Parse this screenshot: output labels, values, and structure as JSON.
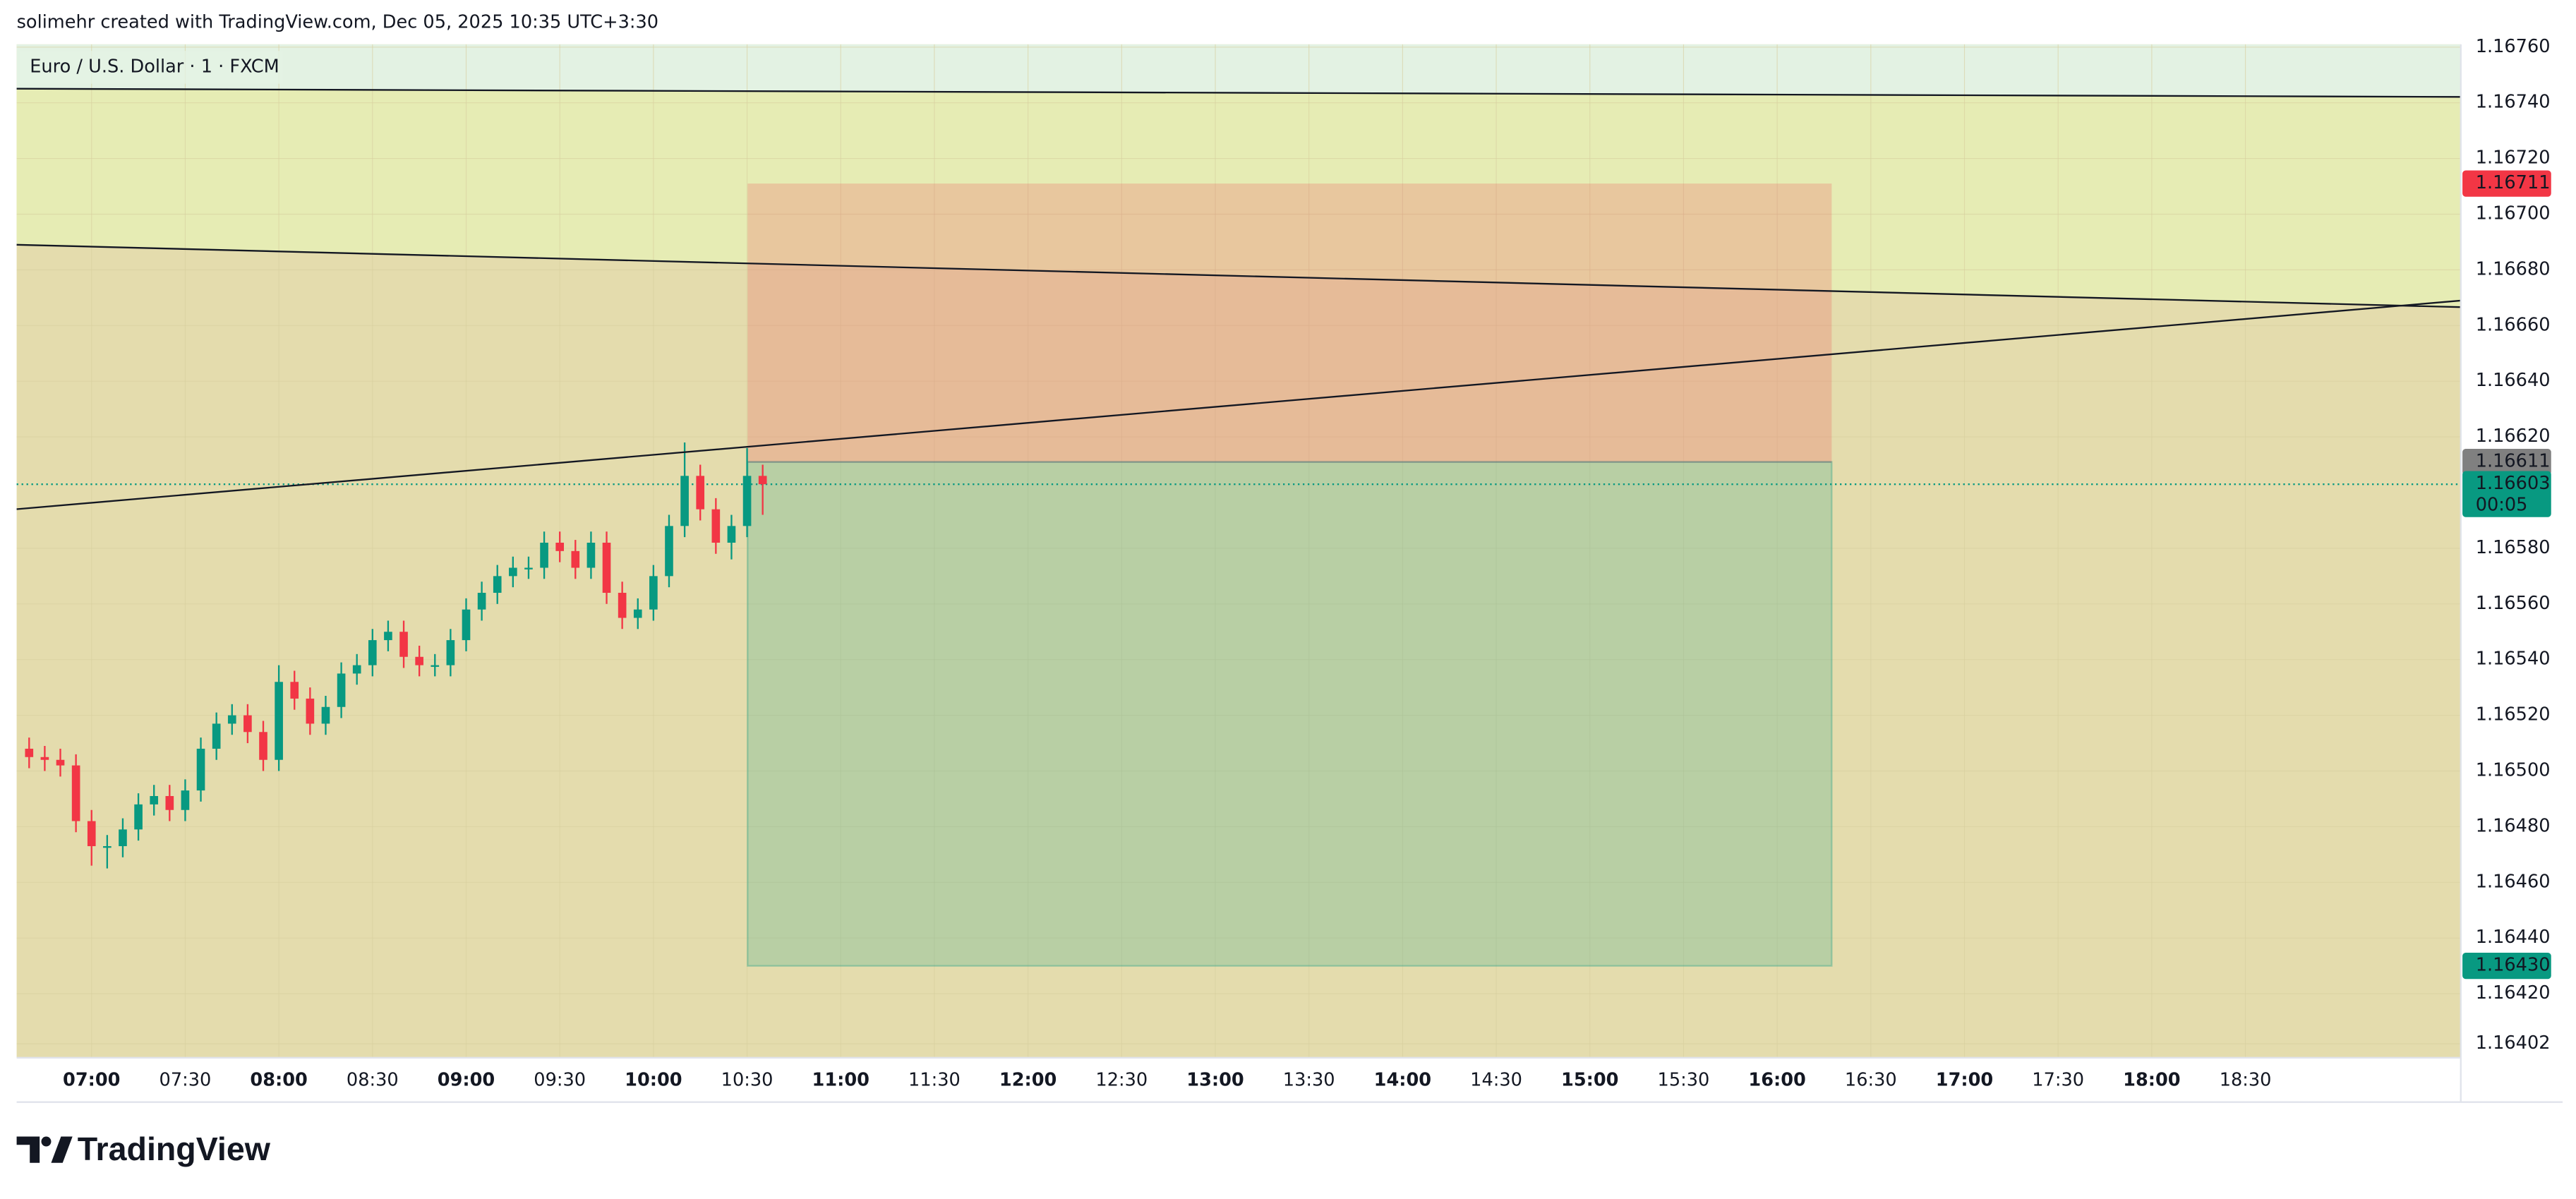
{
  "header": {
    "text": "solimehr created with TradingView.com, Dec 05, 2025 10:35 UTC+3:30"
  },
  "chart_data": {
    "type": "candlestick",
    "title": "Euro / U.S. Dollar · 1 · FXCM",
    "x": [
      "06:40",
      "06:45",
      "06:50",
      "06:55",
      "07:00",
      "07:05",
      "07:10",
      "07:15",
      "07:20",
      "07:25",
      "07:30",
      "07:35",
      "07:40",
      "07:45",
      "07:50",
      "07:55",
      "08:00",
      "08:05",
      "08:10",
      "08:15",
      "08:20",
      "08:25",
      "08:30",
      "08:35",
      "08:40",
      "08:45",
      "08:50",
      "08:55",
      "09:00",
      "09:05",
      "09:10",
      "09:15",
      "09:20",
      "09:25",
      "09:30",
      "09:35",
      "09:40",
      "09:45",
      "09:50",
      "09:55",
      "10:00",
      "10:05",
      "10:10",
      "10:15",
      "10:20",
      "10:25",
      "10:30",
      "10:35"
    ],
    "open": [
      1.16508,
      1.16505,
      1.16504,
      1.16502,
      1.16482,
      1.16473,
      1.16473,
      1.16479,
      1.16488,
      1.16491,
      1.16486,
      1.16493,
      1.16508,
      1.16517,
      1.1652,
      1.16514,
      1.16504,
      1.16532,
      1.16526,
      1.16517,
      1.16523,
      1.16535,
      1.16538,
      1.16547,
      1.1655,
      1.16541,
      1.16538,
      1.16538,
      1.16547,
      1.16558,
      1.16564,
      1.1657,
      1.16573,
      1.16573,
      1.16582,
      1.16579,
      1.16573,
      1.16582,
      1.16564,
      1.16555,
      1.16558,
      1.1657,
      1.16588,
      1.16606,
      1.16594,
      1.16582,
      1.16588,
      1.16606
    ],
    "high": [
      1.16512,
      1.16509,
      1.16508,
      1.16506,
      1.16486,
      1.16477,
      1.16483,
      1.16492,
      1.16495,
      1.16495,
      1.16497,
      1.16512,
      1.16521,
      1.16524,
      1.16524,
      1.16518,
      1.16538,
      1.16536,
      1.1653,
      1.16527,
      1.16539,
      1.16542,
      1.16551,
      1.16554,
      1.16554,
      1.16545,
      1.16542,
      1.16551,
      1.16562,
      1.16568,
      1.16574,
      1.16577,
      1.16577,
      1.16586,
      1.16586,
      1.16583,
      1.16586,
      1.16586,
      1.16568,
      1.16562,
      1.16574,
      1.16592,
      1.16618,
      1.1661,
      1.16598,
      1.16592,
      1.16616,
      1.1661
    ],
    "low": [
      1.16501,
      1.165,
      1.16498,
      1.16478,
      1.16466,
      1.16465,
      1.16469,
      1.16475,
      1.16484,
      1.16482,
      1.16482,
      1.16489,
      1.16504,
      1.16513,
      1.1651,
      1.165,
      1.165,
      1.16522,
      1.16513,
      1.16513,
      1.16519,
      1.16531,
      1.16534,
      1.16543,
      1.16537,
      1.16534,
      1.16534,
      1.16534,
      1.16543,
      1.16554,
      1.1656,
      1.16566,
      1.16569,
      1.16569,
      1.16575,
      1.16569,
      1.16569,
      1.1656,
      1.16551,
      1.16551,
      1.16554,
      1.16566,
      1.16584,
      1.1659,
      1.16578,
      1.16576,
      1.16584,
      1.16592
    ],
    "close": [
      1.16505,
      1.16504,
      1.16502,
      1.16482,
      1.16473,
      1.16473,
      1.16479,
      1.16488,
      1.16491,
      1.16486,
      1.16493,
      1.16508,
      1.16517,
      1.1652,
      1.16514,
      1.16504,
      1.16532,
      1.16526,
      1.16517,
      1.16523,
      1.16535,
      1.16538,
      1.16547,
      1.1655,
      1.16541,
      1.16538,
      1.16538,
      1.16547,
      1.16558,
      1.16564,
      1.1657,
      1.16573,
      1.16573,
      1.16582,
      1.16579,
      1.16573,
      1.16582,
      1.16564,
      1.16555,
      1.16558,
      1.1657,
      1.16588,
      1.16606,
      1.16594,
      1.16582,
      1.16588,
      1.16606,
      1.16603
    ],
    "up_color": "#089981",
    "down_color": "#f23645",
    "xlim": [
      "06:36",
      "19:39"
    ],
    "xticks": [
      "07:00",
      "07:30",
      "08:00",
      "08:30",
      "09:00",
      "09:30",
      "10:00",
      "10:30",
      "11:00",
      "11:30",
      "12:00",
      "12:30",
      "13:00",
      "13:30",
      "14:00",
      "14:30",
      "15:00",
      "15:30",
      "16:00",
      "16:30",
      "17:00",
      "17:30",
      "18:00",
      "18:30"
    ],
    "ylim": [
      1.16397,
      1.16761
    ],
    "yticks": [
      {
        "value": 1.1676,
        "label": "1.16760"
      },
      {
        "value": 1.1674,
        "label": "1.16740"
      },
      {
        "value": 1.1672,
        "label": "1.16720"
      },
      {
        "value": 1.167,
        "label": "1.16700"
      },
      {
        "value": 1.1668,
        "label": "1.16680"
      },
      {
        "value": 1.1666,
        "label": "1.16660"
      },
      {
        "value": 1.1664,
        "label": "1.16640"
      },
      {
        "value": 1.1662,
        "label": "1.16620"
      },
      {
        "value": 1.1658,
        "label": "1.16580"
      },
      {
        "value": 1.1656,
        "label": "1.16560"
      },
      {
        "value": 1.1654,
        "label": "1.16540"
      },
      {
        "value": 1.1652,
        "label": "1.16520"
      },
      {
        "value": 1.165,
        "label": "1.16500"
      },
      {
        "value": 1.1648,
        "label": "1.16480"
      },
      {
        "value": 1.1646,
        "label": "1.16460"
      },
      {
        "value": 1.1644,
        "label": "1.16440"
      },
      {
        "value": 1.1642,
        "label": "1.16420"
      },
      1.16402
    ],
    "grid": true,
    "price_labels": [
      {
        "value": 1.16711,
        "color": "#f23645"
      },
      {
        "value": 1.16611,
        "color": "#808080"
      },
      {
        "value": 1.16603,
        "color": "#089981",
        "countdown": "00:05"
      },
      {
        "value": 1.1643,
        "label": "1.16430",
        "color": "#089981"
      }
    ]
  },
  "footer": {
    "logo": "TradingView"
  }
}
